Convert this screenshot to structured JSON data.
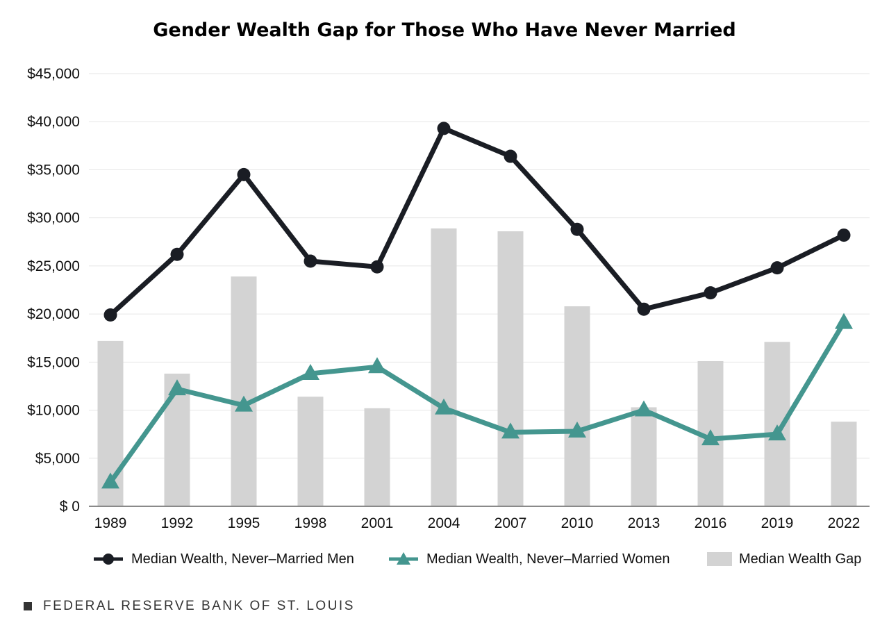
{
  "chart_data": {
    "type": "bar",
    "title": "Gender Wealth Gap for Those Who Have Never Married",
    "categories": [
      "1989",
      "1992",
      "1995",
      "1998",
      "2001",
      "2004",
      "2007",
      "2010",
      "2013",
      "2016",
      "2019",
      "2022"
    ],
    "ylim": [
      0,
      45000
    ],
    "yticks": [
      0,
      5000,
      10000,
      15000,
      20000,
      25000,
      30000,
      35000,
      40000,
      45000
    ],
    "ytick_labels": [
      "$ 0",
      "$5,000",
      "$10,000",
      "$15,000",
      "$20,000",
      "$25,000",
      "$30,000",
      "$35,000",
      "$40,000",
      "$45,000"
    ],
    "grid": true,
    "legend_position": "bottom",
    "series": [
      {
        "name": "Median Wealth, Never–Married Men",
        "kind": "line",
        "marker": "circle",
        "color": "#1a1d24",
        "values": [
          19900,
          26200,
          34500,
          25500,
          24900,
          39300,
          36400,
          28800,
          20500,
          22200,
          24800,
          28200
        ]
      },
      {
        "name": "Median Wealth, Never–Married Women",
        "kind": "line",
        "marker": "triangle",
        "color": "#44968f",
        "values": [
          2500,
          12200,
          10500,
          13800,
          14500,
          10200,
          7700,
          7800,
          10000,
          7000,
          7500,
          19100
        ]
      },
      {
        "name": "Median Wealth Gap",
        "kind": "bar",
        "color": "#d3d3d3",
        "values": [
          17200,
          13800,
          23900,
          11400,
          10200,
          28900,
          28600,
          20800,
          10300,
          15100,
          17100,
          8800
        ]
      }
    ]
  },
  "footer": {
    "source": "FEDERAL RESERVE BANK OF ST. LOUIS"
  }
}
